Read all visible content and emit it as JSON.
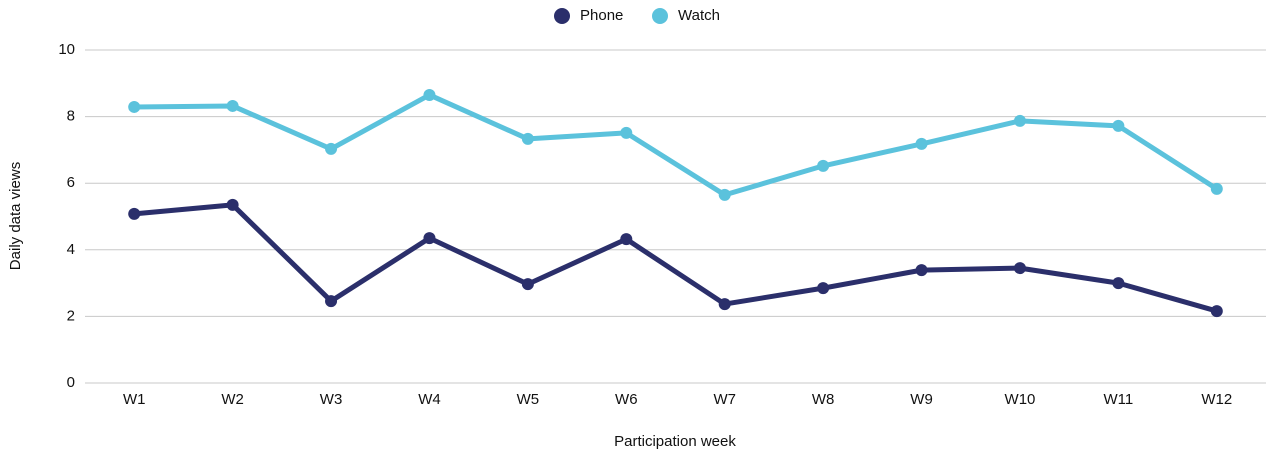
{
  "chart_data": {
    "type": "line",
    "categories": [
      "W1",
      "W2",
      "W3",
      "W4",
      "W5",
      "W6",
      "W7",
      "W8",
      "W9",
      "W10",
      "W11",
      "W12"
    ],
    "series": [
      {
        "name": "Phone",
        "color": "#2b2f6b",
        "values": [
          5.08,
          5.35,
          2.46,
          4.35,
          2.97,
          4.32,
          2.37,
          2.85,
          3.39,
          3.45,
          3.0,
          2.16
        ]
      },
      {
        "name": "Watch",
        "color": "#5bc2dc",
        "values": [
          8.29,
          8.32,
          7.03,
          8.65,
          7.33,
          7.51,
          5.65,
          6.52,
          7.18,
          7.87,
          7.72,
          5.83
        ]
      }
    ],
    "x_label": "Participation week",
    "y_label": "Daily data views",
    "ylim": [
      0,
      10
    ],
    "yticks": [
      0,
      2,
      4,
      6,
      8,
      10
    ],
    "grid": true,
    "legend": "top"
  }
}
